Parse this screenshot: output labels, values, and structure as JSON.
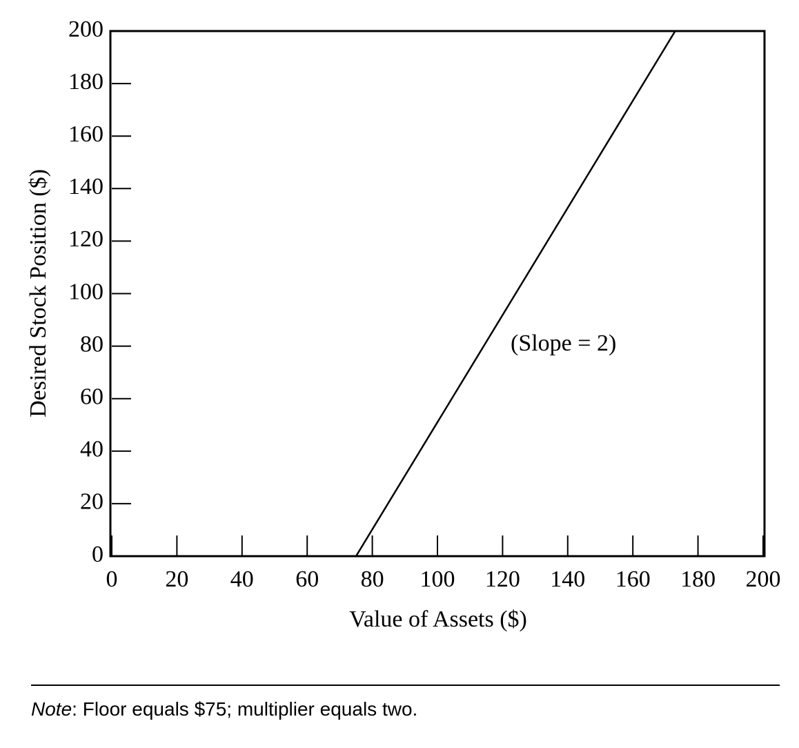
{
  "chart_data": {
    "type": "line",
    "x_label": "Value of Assets ($)",
    "y_label": "Desired Stock Position ($)",
    "annotation": "(Slope = 2)",
    "x": [
      0,
      75,
      173
    ],
    "series": [
      {
        "color": "#000000",
        "values": [
          0,
          0,
          200
        ]
      }
    ],
    "xlim": [
      0,
      200
    ],
    "ylim": [
      0,
      200
    ],
    "xticks": [
      0,
      20,
      40,
      60,
      80,
      100,
      120,
      140,
      160,
      180,
      200
    ],
    "yticks": [
      0,
      20,
      40,
      60,
      80,
      100,
      120,
      140,
      160,
      180,
      200
    ],
    "note_label": "Note",
    "note": ": Floor equals $75; multiplier equals two."
  }
}
